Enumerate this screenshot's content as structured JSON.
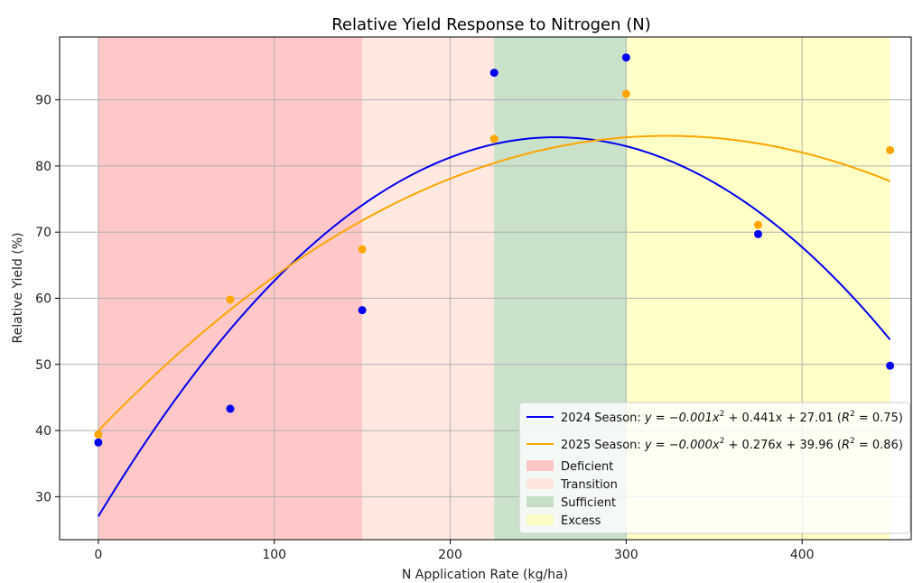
{
  "chart_data": {
    "type": "scatter",
    "title": "Relative Yield Response to Nitrogen (N)",
    "xlabel": "N Application Rate (kg/ha)",
    "ylabel": "Relative Yield (%)",
    "xlim": [
      -22,
      462
    ],
    "ylim": [
      23.5,
      99.5
    ],
    "xticks": [
      0,
      100,
      200,
      300,
      400
    ],
    "yticks": [
      30,
      40,
      50,
      60,
      70,
      80,
      90
    ],
    "grid": true,
    "legend_position": "bottom-right",
    "zones": [
      {
        "name": "Deficient",
        "x_range": [
          0,
          150
        ],
        "color": "#ff9a9a",
        "opacity": 0.55
      },
      {
        "name": "Transition",
        "x_range": [
          150,
          225
        ],
        "color": "#ffd6c6",
        "opacity": 0.55
      },
      {
        "name": "Sufficient",
        "x_range": [
          225,
          300
        ],
        "color": "#9fc99f",
        "opacity": 0.55
      },
      {
        "name": "Excess",
        "x_range": [
          300,
          450
        ],
        "color": "#ffff99",
        "opacity": 0.55
      }
    ],
    "series": [
      {
        "name": "2024 Season",
        "color": "#0000ee",
        "x": [
          0,
          75,
          150,
          225,
          300,
          375,
          450
        ],
        "y": [
          38.2,
          43.3,
          58.2,
          94.1,
          96.4,
          69.7,
          49.8
        ],
        "fit": {
          "a": -0.000848,
          "b": 0.441,
          "c": 27.01,
          "x_range": [
            0,
            450
          ]
        },
        "legend_label_prefix": "2024 Season: ",
        "legend_equation": "y = −0.001x",
        "legend_equation_rest": " + 0.441x + 27.01 (",
        "legend_r2": "= 0.75)"
      },
      {
        "name": "2025 Season",
        "color": "#ffa500",
        "x": [
          0,
          75,
          150,
          225,
          300,
          375,
          450
        ],
        "y": [
          39.4,
          59.8,
          67.4,
          84.1,
          90.9,
          71.1,
          82.4
        ],
        "fit": {
          "a": -0.000427,
          "b": 0.276,
          "c": 39.96,
          "x_range": [
            0,
            450
          ]
        },
        "legend_label_prefix": "2025 Season: ",
        "legend_equation": "y = −0.000x",
        "legend_equation_rest": " + 0.276x + 39.96 (",
        "legend_r2": "= 0.86)"
      }
    ]
  }
}
